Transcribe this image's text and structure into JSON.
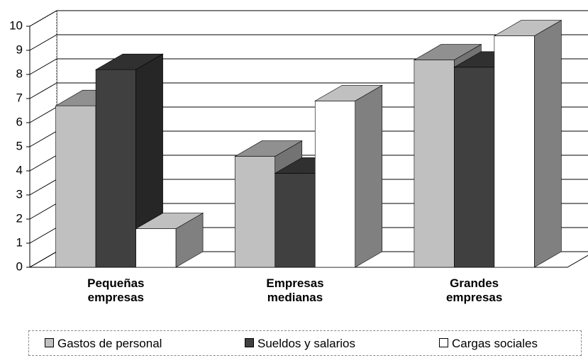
{
  "chart_data": {
    "type": "bar3d",
    "categories": [
      "Pequeñas empresas",
      "Empresas medianas",
      "Grandes empresas"
    ],
    "series": [
      {
        "name": "Gastos de personal",
        "color": "#c0c0c0",
        "values": [
          6.7,
          4.6,
          8.6
        ]
      },
      {
        "name": "Sueldos y salarios",
        "color": "#404040",
        "values": [
          8.2,
          3.9,
          8.3
        ]
      },
      {
        "name": "Cargas sociales",
        "color": "#ffffff",
        "values": [
          1.6,
          6.9,
          9.6
        ]
      }
    ],
    "ylim": [
      0,
      10
    ],
    "yticks": [
      0,
      1,
      2,
      3,
      4,
      5,
      6,
      7,
      8,
      9,
      10
    ],
    "grid": true,
    "legend": "bottom"
  }
}
